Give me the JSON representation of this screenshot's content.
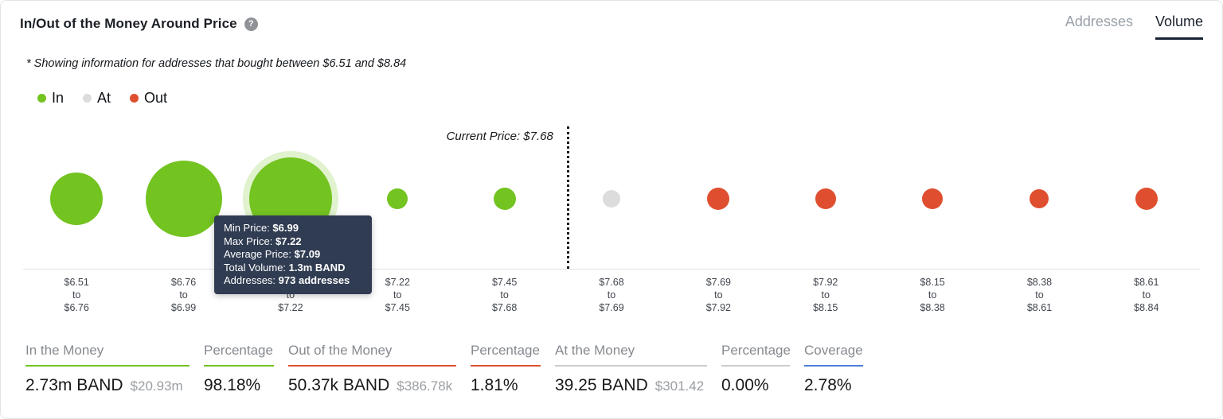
{
  "header": {
    "title": "In/Out of the Money Around Price",
    "help": "?",
    "tabs": [
      {
        "id": "addresses",
        "label": "Addresses",
        "active": false
      },
      {
        "id": "volume",
        "label": "Volume",
        "active": true
      }
    ]
  },
  "subtitle": "* Showing information for addresses that bought between $6.51 and $8.84",
  "legend": [
    {
      "label": "In",
      "color": "#73c321"
    },
    {
      "label": "At",
      "color": "#dcdcdc"
    },
    {
      "label": "Out",
      "color": "#df4f2f"
    }
  ],
  "chart_data": {
    "type": "bubble",
    "title": "In/Out of the Money Around Price (Volume)",
    "current_price": 7.68,
    "current_price_label": "Current Price: $7.68",
    "colors": {
      "in": "#73c321",
      "at": "#dcdcdc",
      "out": "#df4f2f"
    },
    "highlighted_bucket_index": 2,
    "highlighted_bucket": {
      "min_price": "$6.99",
      "max_price": "$7.22",
      "average_price": "$7.09",
      "total_volume": "1.3m BAND",
      "addresses": "973 addresses"
    },
    "buckets": [
      {
        "min": 6.51,
        "max": 6.76,
        "status": "in",
        "radius": 33,
        "label_lines": [
          "$6.51",
          "to",
          "$6.76"
        ]
      },
      {
        "min": 6.76,
        "max": 6.99,
        "status": "in",
        "radius": 48,
        "label_lines": [
          "$6.76",
          "to",
          "$6.99"
        ]
      },
      {
        "min": 6.99,
        "max": 7.22,
        "status": "in",
        "radius": 52,
        "label_lines": [
          "$6.99",
          "to",
          "$7.22"
        ]
      },
      {
        "min": 7.22,
        "max": 7.45,
        "status": "in",
        "radius": 13,
        "label_lines": [
          "$7.22",
          "to",
          "$7.45"
        ]
      },
      {
        "min": 7.45,
        "max": 7.68,
        "status": "in",
        "radius": 14,
        "label_lines": [
          "$7.45",
          "to",
          "$7.68"
        ]
      },
      {
        "min": 7.68,
        "max": 7.69,
        "status": "at",
        "radius": 11,
        "label_lines": [
          "$7.68",
          "to",
          "$7.69"
        ]
      },
      {
        "min": 7.69,
        "max": 7.92,
        "status": "out",
        "radius": 14,
        "label_lines": [
          "$7.69",
          "to",
          "$7.92"
        ]
      },
      {
        "min": 7.92,
        "max": 8.15,
        "status": "out",
        "radius": 13,
        "label_lines": [
          "$7.92",
          "to",
          "$8.15"
        ]
      },
      {
        "min": 8.15,
        "max": 8.38,
        "status": "out",
        "radius": 13,
        "label_lines": [
          "$8.15",
          "to",
          "$8.38"
        ]
      },
      {
        "min": 8.38,
        "max": 8.61,
        "status": "out",
        "radius": 12,
        "label_lines": [
          "$8.38",
          "to",
          "$8.61"
        ]
      },
      {
        "min": 8.61,
        "max": 8.84,
        "status": "out",
        "radius": 14,
        "label_lines": [
          "$8.61",
          "to",
          "$8.84"
        ]
      }
    ]
  },
  "tooltip": {
    "rows": [
      {
        "label": "Min Price:",
        "value": "$6.99"
      },
      {
        "label": "Max Price:",
        "value": "$7.22"
      },
      {
        "label": "Average Price:",
        "value": "$7.09"
      },
      {
        "label": "Total Volume:",
        "value": "1.3m BAND"
      },
      {
        "label": "Addresses:",
        "value": "973 addresses"
      }
    ]
  },
  "stats": [
    {
      "label": "In the Money",
      "value": "2.73m BAND",
      "secondary": "$20.93m",
      "accent": "#73c321"
    },
    {
      "label": "Percentage",
      "value": "98.18%",
      "secondary": "",
      "accent": "#73c321"
    },
    {
      "label": "Out of the Money",
      "value": "50.37k BAND",
      "secondary": "$386.78k",
      "accent": "#df4f2f"
    },
    {
      "label": "Percentage",
      "value": "1.81%",
      "secondary": "",
      "accent": "#df4f2f"
    },
    {
      "label": "At the Money",
      "value": "39.25 BAND",
      "secondary": "$301.42",
      "accent": "#cccccc"
    },
    {
      "label": "Percentage",
      "value": "0.00%",
      "secondary": "",
      "accent": "#cccccc"
    },
    {
      "label": "Coverage",
      "value": "2.78%",
      "secondary": "",
      "accent": "#4a7dd7"
    }
  ]
}
